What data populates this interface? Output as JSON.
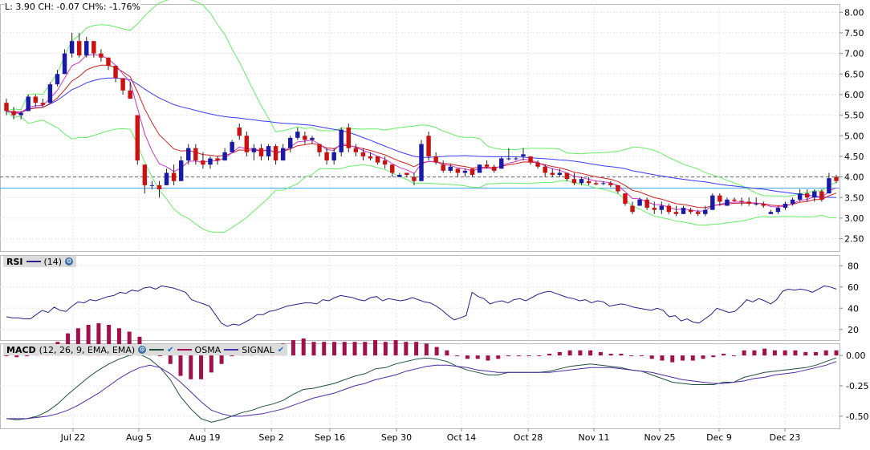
{
  "quote": {
    "text": "L: 3.90 CH: -0.07 CH%: -1.76%"
  },
  "colors": {
    "up": "#1a1aa8",
    "down": "#cc1111",
    "sma": "#3a3aff",
    "ema": "#cc2222",
    "fast": "#cc33cc",
    "bands": "#66ee66",
    "rsi": "#2a1f8c",
    "macd": "#1f4f3f",
    "signal": "#4b2aa8",
    "osma": "#a0104a"
  },
  "price_panel": {
    "y_ticks": [
      "8.00",
      "7.50",
      "7.00",
      "6.50",
      "6.00",
      "5.50",
      "5.00",
      "4.50",
      "4.00",
      "3.50",
      "3.00",
      "2.50"
    ]
  },
  "rsi_panel": {
    "label": "RSI",
    "params": "(14)",
    "y_ticks": [
      "80",
      "60",
      "40",
      "20"
    ]
  },
  "macd_panel": {
    "label": "MACD",
    "params": "(12, 26, 9, EMA, EMA)",
    "legend": [
      "OSMA",
      "SIGNAL"
    ],
    "y_ticks": [
      "0.00",
      "-0.25",
      "-0.50"
    ]
  },
  "x_ticks": [
    "Jul 22",
    "Aug 5",
    "Aug 19",
    "Sep 2",
    "Sep 16",
    "Sep 30",
    "Oct 14",
    "Oct 28",
    "Nov 11",
    "Nov 25",
    "Dec 9",
    "Dec 23"
  ],
  "chart_data": {
    "type": "line",
    "title": "",
    "y_range_price": [
      2.2,
      8.2
    ],
    "y_range_rsi": [
      10,
      90
    ],
    "y_range_macd": [
      -0.6,
      0.1
    ],
    "reference_lines": [
      3.73,
      4.0
    ],
    "ohlc": [
      [
        5.8,
        5.9,
        5.5,
        5.6
      ],
      [
        5.6,
        5.7,
        5.4,
        5.5
      ],
      [
        5.5,
        5.6,
        5.4,
        5.55
      ],
      [
        5.6,
        6.0,
        5.6,
        5.95
      ],
      [
        5.95,
        6.0,
        5.7,
        5.8
      ],
      [
        5.8,
        5.9,
        5.7,
        5.75
      ],
      [
        5.8,
        6.3,
        5.8,
        6.25
      ],
      [
        6.25,
        6.6,
        6.2,
        6.5
      ],
      [
        6.5,
        7.1,
        6.5,
        7.0
      ],
      [
        7.0,
        7.5,
        6.9,
        7.3
      ],
      [
        7.3,
        7.5,
        6.9,
        6.95
      ],
      [
        6.95,
        7.4,
        6.9,
        7.3
      ],
      [
        7.3,
        7.3,
        6.9,
        7.0
      ],
      [
        7.0,
        7.1,
        6.8,
        6.9
      ],
      [
        6.9,
        6.9,
        6.6,
        6.7
      ],
      [
        6.7,
        6.7,
        6.3,
        6.4
      ],
      [
        6.4,
        6.4,
        6.0,
        6.1
      ],
      [
        6.1,
        6.3,
        5.9,
        5.9
      ],
      [
        5.5,
        5.5,
        4.3,
        4.4
      ],
      [
        4.3,
        4.3,
        3.6,
        3.8
      ],
      [
        3.8,
        3.9,
        3.7,
        3.8
      ],
      [
        3.8,
        3.9,
        3.5,
        3.7
      ],
      [
        3.8,
        4.2,
        3.8,
        4.1
      ],
      [
        4.1,
        4.3,
        3.8,
        3.9
      ],
      [
        3.9,
        4.5,
        3.9,
        4.4
      ],
      [
        4.4,
        4.8,
        4.3,
        4.7
      ],
      [
        4.7,
        4.8,
        4.3,
        4.4
      ],
      [
        4.4,
        4.6,
        4.2,
        4.3
      ],
      [
        4.3,
        4.5,
        4.2,
        4.45
      ],
      [
        4.45,
        4.5,
        4.3,
        4.4
      ],
      [
        4.4,
        4.7,
        4.4,
        4.6
      ],
      [
        4.6,
        4.9,
        4.6,
        4.85
      ],
      [
        5.2,
        5.3,
        4.9,
        5.0
      ],
      [
        5.0,
        5.1,
        4.5,
        4.6
      ],
      [
        4.6,
        4.8,
        4.4,
        4.7
      ],
      [
        4.7,
        4.8,
        4.4,
        4.5
      ],
      [
        4.5,
        4.8,
        4.4,
        4.75
      ],
      [
        4.75,
        4.8,
        4.3,
        4.4
      ],
      [
        4.4,
        4.8,
        4.4,
        4.7
      ],
      [
        4.7,
        5.0,
        4.6,
        4.95
      ],
      [
        4.95,
        5.2,
        4.9,
        5.1
      ],
      [
        5.0,
        5.1,
        4.8,
        4.9
      ],
      [
        4.9,
        5.0,
        4.8,
        4.95
      ],
      [
        4.8,
        4.8,
        4.5,
        4.6
      ],
      [
        4.6,
        4.7,
        4.3,
        4.4
      ],
      [
        4.4,
        4.7,
        4.3,
        4.6
      ],
      [
        4.6,
        5.2,
        4.5,
        5.15
      ],
      [
        5.2,
        5.3,
        4.6,
        4.7
      ],
      [
        4.7,
        4.8,
        4.5,
        4.6
      ],
      [
        4.6,
        4.7,
        4.4,
        4.5
      ],
      [
        4.5,
        4.6,
        4.4,
        4.45
      ],
      [
        4.5,
        4.5,
        4.3,
        4.35
      ],
      [
        4.4,
        4.5,
        4.2,
        4.3
      ],
      [
        4.3,
        4.3,
        4.0,
        4.1
      ],
      [
        4.0,
        4.1,
        4.0,
        4.05
      ],
      [
        4.1,
        4.1,
        4.0,
        4.05
      ],
      [
        4.0,
        4.1,
        3.8,
        3.9
      ],
      [
        3.9,
        4.9,
        3.9,
        4.8
      ],
      [
        5.0,
        5.1,
        4.4,
        4.5
      ],
      [
        4.5,
        4.6,
        4.3,
        4.35
      ],
      [
        4.3,
        4.4,
        4.1,
        4.15
      ],
      [
        4.15,
        4.3,
        4.1,
        4.25
      ],
      [
        4.2,
        4.2,
        4.0,
        4.1
      ],
      [
        4.1,
        4.2,
        4.0,
        4.15
      ],
      [
        4.2,
        4.2,
        4.0,
        4.05
      ],
      [
        4.1,
        4.3,
        4.1,
        4.3
      ],
      [
        4.3,
        4.4,
        4.2,
        4.25
      ],
      [
        4.25,
        4.3,
        4.1,
        4.15
      ],
      [
        4.2,
        4.5,
        4.2,
        4.45
      ],
      [
        4.45,
        4.7,
        4.4,
        4.45
      ],
      [
        4.45,
        4.5,
        4.4,
        4.45
      ],
      [
        4.5,
        4.7,
        4.4,
        4.55
      ],
      [
        4.5,
        4.5,
        4.3,
        4.35
      ],
      [
        4.35,
        4.4,
        4.2,
        4.25
      ],
      [
        4.25,
        4.3,
        4.0,
        4.1
      ],
      [
        4.1,
        4.2,
        4.0,
        4.05
      ],
      [
        4.05,
        4.2,
        4.0,
        4.1
      ],
      [
        4.1,
        4.1,
        3.9,
        3.95
      ],
      [
        3.95,
        4.1,
        3.8,
        3.85
      ],
      [
        3.85,
        4.0,
        3.8,
        3.95
      ],
      [
        3.9,
        4.0,
        3.8,
        3.85
      ],
      [
        3.85,
        3.9,
        3.8,
        3.82
      ],
      [
        3.85,
        3.9,
        3.8,
        3.85
      ],
      [
        3.85,
        3.9,
        3.75,
        3.8
      ],
      [
        3.8,
        3.8,
        3.6,
        3.65
      ],
      [
        3.6,
        3.6,
        3.3,
        3.35
      ],
      [
        3.3,
        3.4,
        3.1,
        3.15
      ],
      [
        3.3,
        3.5,
        3.3,
        3.45
      ],
      [
        3.45,
        3.5,
        3.2,
        3.25
      ],
      [
        3.25,
        3.4,
        3.1,
        3.2
      ],
      [
        3.2,
        3.4,
        3.1,
        3.3
      ],
      [
        3.3,
        3.35,
        3.1,
        3.15
      ],
      [
        3.15,
        3.3,
        3.05,
        3.1
      ],
      [
        3.1,
        3.3,
        3.1,
        3.25
      ],
      [
        3.2,
        3.25,
        3.1,
        3.15
      ],
      [
        3.15,
        3.2,
        3.05,
        3.1
      ],
      [
        3.1,
        3.3,
        3.05,
        3.2
      ],
      [
        3.2,
        3.6,
        3.2,
        3.55
      ],
      [
        3.55,
        3.6,
        3.3,
        3.4
      ],
      [
        3.3,
        3.5,
        3.3,
        3.45
      ],
      [
        3.45,
        3.5,
        3.4,
        3.42
      ],
      [
        3.42,
        3.5,
        3.3,
        3.4
      ],
      [
        3.4,
        3.5,
        3.3,
        3.35
      ],
      [
        3.35,
        3.5,
        3.3,
        3.35
      ],
      [
        3.35,
        3.4,
        3.25,
        3.3
      ],
      [
        3.1,
        3.2,
        3.1,
        3.15
      ],
      [
        3.15,
        3.3,
        3.1,
        3.25
      ],
      [
        3.25,
        3.4,
        3.2,
        3.35
      ],
      [
        3.35,
        3.5,
        3.3,
        3.45
      ],
      [
        3.45,
        3.7,
        3.4,
        3.6
      ],
      [
        3.6,
        3.7,
        3.4,
        3.5
      ],
      [
        3.5,
        3.7,
        3.4,
        3.65
      ],
      [
        3.65,
        3.7,
        3.4,
        3.45
      ],
      [
        3.6,
        4.1,
        3.6,
        3.97
      ],
      [
        4.0,
        4.05,
        3.85,
        3.9
      ]
    ],
    "rsi": [
      32,
      31,
      31,
      30,
      30,
      34,
      38,
      36,
      41,
      38,
      37,
      42,
      46,
      45,
      48,
      47,
      49,
      51,
      52,
      55,
      54,
      57,
      56,
      59,
      60,
      58,
      61,
      60,
      59,
      57,
      55,
      48,
      46,
      44,
      42,
      34,
      26,
      23,
      25,
      24,
      27,
      30,
      34,
      34,
      37,
      38,
      40,
      42,
      43,
      44,
      45,
      45,
      44,
      48,
      47,
      50,
      52,
      51,
      50,
      48,
      47,
      50,
      51,
      47,
      49,
      48,
      47,
      48,
      50,
      48,
      46,
      45,
      42,
      38,
      33,
      29,
      31,
      33,
      55,
      51,
      49,
      44,
      46,
      47,
      45,
      48,
      49,
      47,
      50,
      53,
      55,
      56,
      54,
      52,
      50,
      49,
      47,
      48,
      45,
      47,
      46,
      42,
      43,
      44,
      43,
      41,
      40,
      39,
      38,
      40,
      38,
      32,
      33,
      28,
      30,
      27,
      26,
      30,
      34,
      40,
      38,
      36,
      37,
      42,
      48,
      46,
      49,
      47,
      44,
      48,
      56,
      58,
      57,
      58,
      57,
      55,
      58,
      61,
      60,
      58
    ],
    "macd": [
      -0.52,
      -0.53,
      -0.52,
      -0.5,
      -0.46,
      -0.4,
      -0.32,
      -0.25,
      -0.18,
      -0.12,
      -0.07,
      -0.03,
      0.0,
      0.01,
      -0.03,
      -0.1,
      -0.2,
      -0.34,
      -0.44,
      -0.52,
      -0.55,
      -0.53,
      -0.5,
      -0.47,
      -0.45,
      -0.42,
      -0.4,
      -0.37,
      -0.32,
      -0.28,
      -0.27,
      -0.25,
      -0.23,
      -0.2,
      -0.17,
      -0.15,
      -0.11,
      -0.1,
      -0.07,
      -0.05,
      -0.03,
      -0.02,
      -0.03,
      -0.05,
      -0.09,
      -0.12,
      -0.14,
      -0.16,
      -0.16,
      -0.14,
      -0.14,
      -0.14,
      -0.14,
      -0.13,
      -0.11,
      -0.09,
      -0.08,
      -0.07,
      -0.08,
      -0.09,
      -0.1,
      -0.12,
      -0.13,
      -0.16,
      -0.19,
      -0.22,
      -0.23,
      -0.24,
      -0.24,
      -0.24,
      -0.22,
      -0.22,
      -0.18,
      -0.16,
      -0.14,
      -0.13,
      -0.12,
      -0.11,
      -0.1,
      -0.08,
      -0.05,
      -0.02
    ],
    "signal": [
      -0.52,
      -0.52,
      -0.52,
      -0.51,
      -0.5,
      -0.48,
      -0.45,
      -0.41,
      -0.36,
      -0.31,
      -0.25,
      -0.19,
      -0.14,
      -0.1,
      -0.08,
      -0.1,
      -0.15,
      -0.22,
      -0.3,
      -0.38,
      -0.45,
      -0.48,
      -0.5,
      -0.5,
      -0.49,
      -0.48,
      -0.46,
      -0.44,
      -0.41,
      -0.38,
      -0.35,
      -0.33,
      -0.31,
      -0.28,
      -0.25,
      -0.23,
      -0.2,
      -0.18,
      -0.16,
      -0.13,
      -0.11,
      -0.09,
      -0.08,
      -0.08,
      -0.09,
      -0.1,
      -0.12,
      -0.13,
      -0.14,
      -0.14,
      -0.14,
      -0.14,
      -0.14,
      -0.14,
      -0.13,
      -0.12,
      -0.11,
      -0.1,
      -0.1,
      -0.1,
      -0.11,
      -0.12,
      -0.13,
      -0.14,
      -0.16,
      -0.18,
      -0.2,
      -0.21,
      -0.22,
      -0.23,
      -0.23,
      -0.22,
      -0.21,
      -0.19,
      -0.18,
      -0.16,
      -0.15,
      -0.14,
      -0.12,
      -0.1,
      -0.08,
      -0.05
    ]
  }
}
